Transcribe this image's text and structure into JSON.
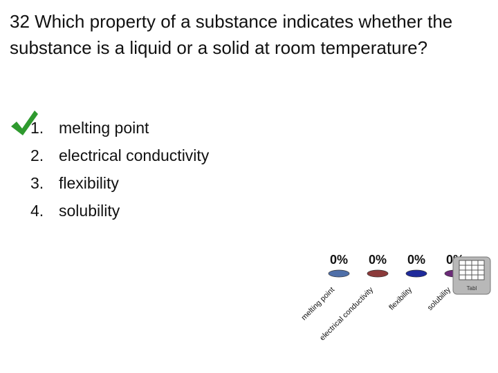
{
  "question": "32 Which property of a substance indicates whether the substance is a liquid or a solid at room temperature?",
  "options": [
    {
      "number": "1.",
      "text": "melting point"
    },
    {
      "number": "2.",
      "text": "electrical conductivity"
    },
    {
      "number": "3.",
      "text": "flexibility"
    },
    {
      "number": "4.",
      "text": "solubility"
    }
  ],
  "icon_label": "Tabl",
  "chart_data": {
    "type": "bar",
    "categories": [
      "melting point",
      "electrical conductivity",
      "flexibility",
      "solubility"
    ],
    "values": [
      0,
      0,
      0,
      0
    ],
    "value_labels": [
      "0%",
      "0%",
      "0%",
      "0%"
    ],
    "colors": [
      "#4f6fa8",
      "#8b3a3a",
      "#1f2a9a",
      "#6b2a78"
    ]
  }
}
